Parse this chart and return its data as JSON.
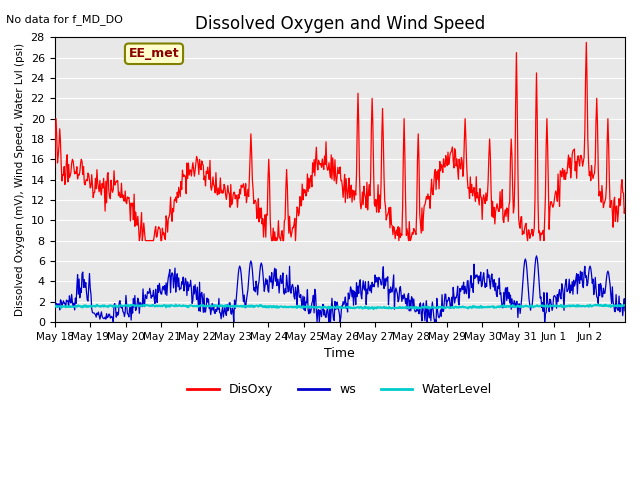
{
  "title": "Dissolved Oxygen and Wind Speed",
  "subtitle": "No data for f_MD_DO",
  "ylabel": "Dissolved Oxygen (mV), Wind Speed, Water Lvl (psi)",
  "xlabel": "Time",
  "annotation": "EE_met",
  "ylim": [
    0,
    28
  ],
  "yticks": [
    0,
    2,
    4,
    6,
    8,
    10,
    12,
    14,
    16,
    18,
    20,
    22,
    24,
    26,
    28
  ],
  "xtick_labels": [
    "May 18",
    "May 19",
    "May 20",
    "May 21",
    "May 22",
    "May 23",
    "May 24",
    "May 25",
    "May 26",
    "May 27",
    "May 28",
    "May 29",
    "May 30",
    "May 31",
    "Jun 1",
    "Jun 2"
  ],
  "bg_color": "#e8e8e8",
  "line_colors": {
    "DisOxy": "#ff0000",
    "ws": "#0000cc",
    "WaterLevel": "#00cccc"
  },
  "legend_labels": [
    "DisOxy",
    "ws",
    "WaterLevel"
  ]
}
